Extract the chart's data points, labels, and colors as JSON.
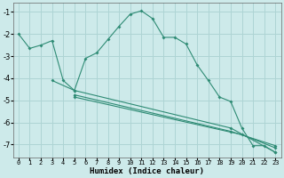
{
  "xlabel": "Humidex (Indice chaleur)",
  "bg_color": "#cdeaea",
  "grid_color": "#aed4d4",
  "line_color": "#2e8b74",
  "xlim": [
    -0.5,
    23.5
  ],
  "ylim": [
    -7.6,
    -0.6
  ],
  "yticks": [
    -7,
    -6,
    -5,
    -4,
    -3,
    -2,
    -1
  ],
  "xticks": [
    0,
    1,
    2,
    3,
    4,
    5,
    6,
    7,
    8,
    9,
    10,
    11,
    12,
    13,
    14,
    15,
    16,
    17,
    18,
    19,
    20,
    21,
    22,
    23
  ],
  "line1_x": [
    0,
    1,
    2,
    3,
    4,
    5,
    6,
    7,
    8,
    9,
    10,
    11,
    12,
    13,
    14,
    15,
    16,
    17,
    18,
    19,
    20,
    21,
    22,
    23
  ],
  "line1_y": [
    -2.0,
    -2.65,
    -2.5,
    -2.3,
    -4.1,
    -4.55,
    -3.1,
    -2.85,
    -2.25,
    -1.65,
    -1.1,
    -0.95,
    -1.3,
    -2.15,
    -2.15,
    -2.45,
    -3.4,
    -4.1,
    -4.85,
    -5.05,
    -6.25,
    -7.05,
    -7.05,
    -7.35
  ],
  "line2_x": [
    3,
    5,
    19,
    23
  ],
  "line2_y": [
    -4.1,
    -4.55,
    -6.25,
    -7.35
  ],
  "line3_x": [
    5,
    19,
    23
  ],
  "line3_y": [
    -4.75,
    -6.4,
    -7.05
  ],
  "line4_x": [
    5,
    20,
    23
  ],
  "line4_y": [
    -4.85,
    -6.55,
    -7.15
  ]
}
